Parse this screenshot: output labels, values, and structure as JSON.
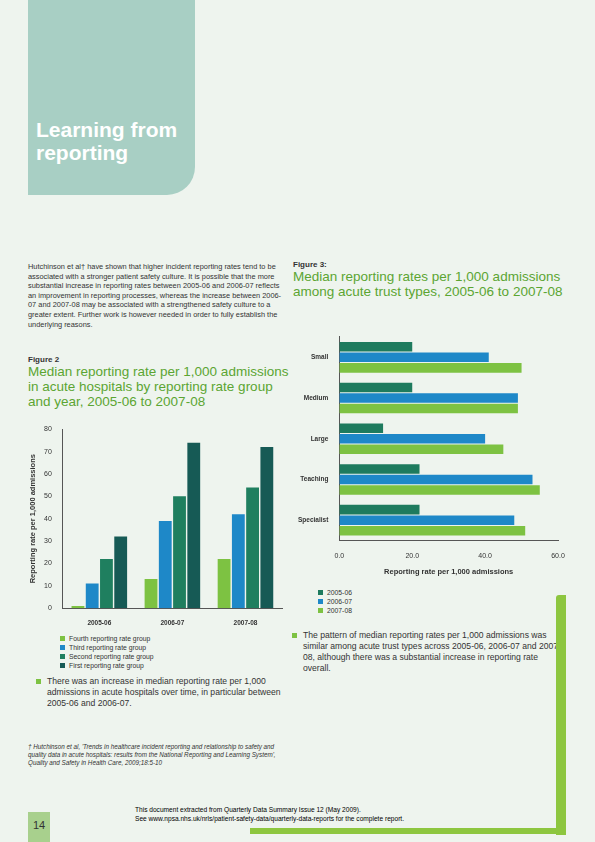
{
  "header": {
    "title": "Learning from reporting"
  },
  "intro": "Hutchinson et al† have shown that higher incident reporting rates tend to be associated with a stronger patient safety culture. It is possible that the more substantial increase in reporting rates between 2005-06 and 2006-07 reflects an improvement in reporting processes, whereas the increase between 2006-07 and 2007-08 may be associated with a strengthened safety culture to a greater extent. Further work is however needed in order to fully establish the underlying reasons.",
  "chart_data": [
    {
      "figure": "Figure 2",
      "type": "bar",
      "title": "Median reporting rate per 1,000 admissions in acute hospitals by reporting rate group and year, 2005-06 to 2007-08",
      "categories": [
        "2005-06",
        "2006-07",
        "2007-08"
      ],
      "series": [
        {
          "name": "Fourth reporting rate group",
          "color": "#7dc242",
          "values": [
            1,
            13,
            22
          ]
        },
        {
          "name": "Third reporting rate group",
          "color": "#1e88c8",
          "values": [
            11,
            39,
            42
          ]
        },
        {
          "name": "Second reporting rate group",
          "color": "#1f7f5f",
          "values": [
            22,
            50,
            54
          ]
        },
        {
          "name": "First reporting rate group",
          "color": "#165a55",
          "values": [
            32,
            74,
            72
          ]
        }
      ],
      "ylabel": "Reporting rate per 1,000 admissions",
      "ylim": [
        0,
        80
      ],
      "yticks": [
        0,
        10,
        20,
        30,
        40,
        50,
        60,
        70,
        80
      ],
      "grid": false,
      "legend": "bottom"
    },
    {
      "figure": "Figure 3:",
      "type": "bar",
      "orientation": "horizontal",
      "title": "Median reporting rates per 1,000 admissions among acute trust types, 2005-06 to 2007-08",
      "categories": [
        "Small",
        "Medium",
        "Large",
        "Teaching",
        "Specialist"
      ],
      "series": [
        {
          "name": "2005-06",
          "color": "#1e7b5e",
          "values": [
            20,
            20,
            12,
            22,
            22
          ]
        },
        {
          "name": "2006-07",
          "color": "#1e88c8",
          "values": [
            41,
            49,
            40,
            53,
            48
          ]
        },
        {
          "name": "2007-08",
          "color": "#7dc242",
          "values": [
            50,
            49,
            45,
            55,
            51
          ]
        }
      ],
      "xlabel": "Reporting rate per 1,000 admissions",
      "xlim": [
        0,
        60
      ],
      "xticks": [
        {
          "value": 0,
          "label": "0.0"
        },
        {
          "value": 20,
          "label": "20.0"
        },
        {
          "value": 40,
          "label": "40.0"
        },
        {
          "value": 60,
          "label": "60.0"
        }
      ],
      "grid": false,
      "legend": "bottom"
    }
  ],
  "figure_notes": [
    "There was an increase in median reporting rate per 1,000 admissions in acute hospitals over time, in particular between 2005-06 and 2006-07.",
    "The pattern of median reporting rates per 1,000 admissions was similar among acute trust types across 2005-06, 2006-07 and 2007-08, although there was a substantial increase in reporting rate overall."
  ],
  "footnote": "† Hutchinson et al, 'Trends in healthcare incident reporting and relationship to safety and quality data in acute hospitals: results from the National Reporting and Learning System', Quality and Safety in Health Care, 2009;18:5-10",
  "footer": [
    "This document extracted from Quarterly Data Summary Issue 12 (May 2009).",
    "See www.npsa.nhs.uk/nrls/patient-safety-data/quarterly-data-reports for the complete report."
  ],
  "page_number": 14
}
